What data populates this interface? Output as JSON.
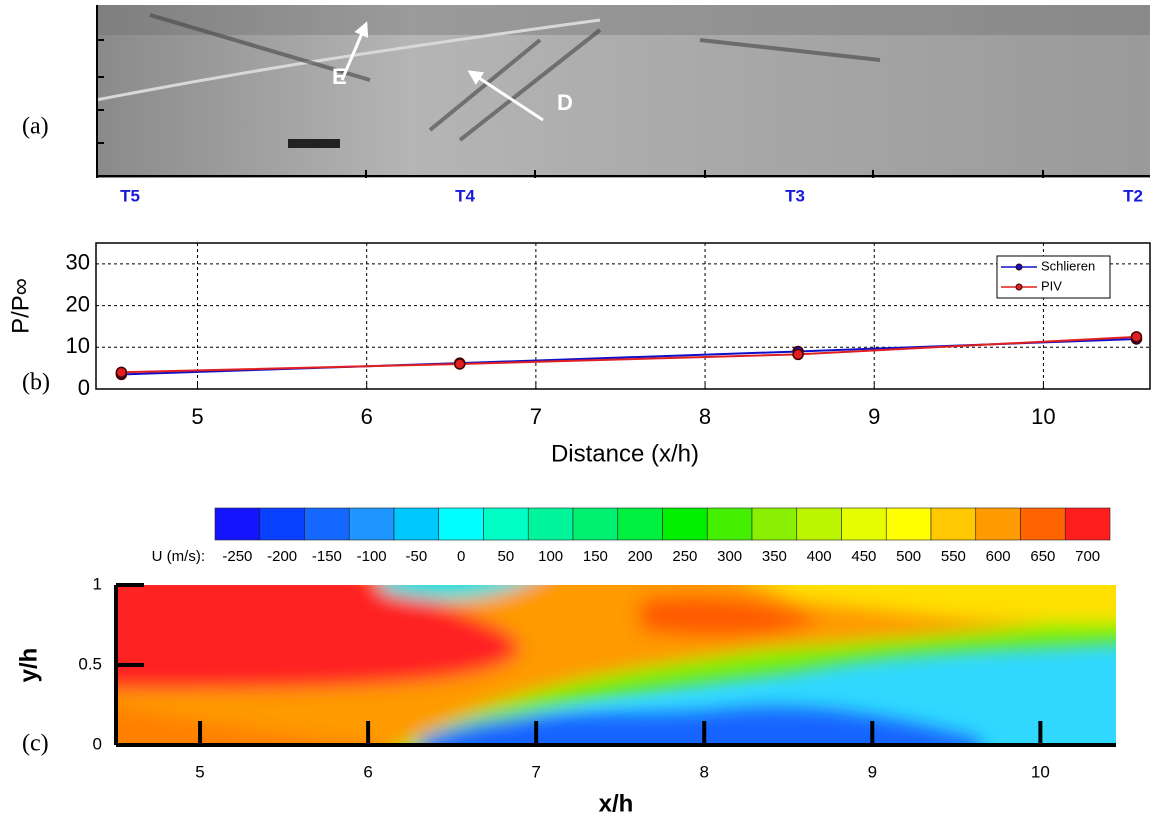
{
  "schlieren": {
    "panel_label": "(a)",
    "annotations": [
      "E",
      "D"
    ],
    "stations": [
      "T5",
      "T4",
      "T3",
      "T2"
    ]
  },
  "chart_data": [
    {
      "type": "line",
      "panel_label": "(b)",
      "xlabel": "Distance (x/h)",
      "ylabel": "P/P∞",
      "xlim": [
        4.4,
        10.63
      ],
      "ylim": [
        0,
        35
      ],
      "xticks": [
        5,
        6,
        7,
        8,
        9,
        10
      ],
      "yticks": [
        0,
        10,
        20,
        30
      ],
      "grid": true,
      "legend": "upper right",
      "x": [
        4.55,
        6.55,
        8.55,
        10.55
      ],
      "series": [
        {
          "name": "Schlieren",
          "color": "#1010c8",
          "values": [
            3.5,
            6.2,
            9,
            12
          ]
        },
        {
          "name": "PIV",
          "color": "#e02020",
          "values": [
            4,
            6,
            8.3,
            12.5
          ]
        }
      ]
    },
    {
      "type": "contour",
      "panel_label": "(c)",
      "colorbar_label": "U (m/s):",
      "xlabel": "x/h",
      "ylabel": "y/h",
      "levels": [
        -250,
        -200,
        -150,
        -100,
        -50,
        0,
        50,
        100,
        150,
        200,
        250,
        300,
        350,
        400,
        450,
        500,
        550,
        600,
        650,
        700
      ],
      "colors": [
        "#1414ff",
        "#0a40ff",
        "#1468ff",
        "#1e96ff",
        "#00c8ff",
        "#00ffff",
        "#00ffc4",
        "#00f59a",
        "#00f070",
        "#00f040",
        "#00f000",
        "#44f000",
        "#88f000",
        "#bbf500",
        "#e6ff00",
        "#ffff00",
        "#ffc800",
        "#ff9a00",
        "#ff6400",
        "#ff1e1e"
      ],
      "xlim": [
        4.5,
        10.45
      ],
      "ylim": [
        0,
        1
      ],
      "xticks": [
        5,
        6,
        7,
        8,
        9,
        10
      ],
      "yticks": [
        0,
        0.5,
        1
      ]
    }
  ]
}
